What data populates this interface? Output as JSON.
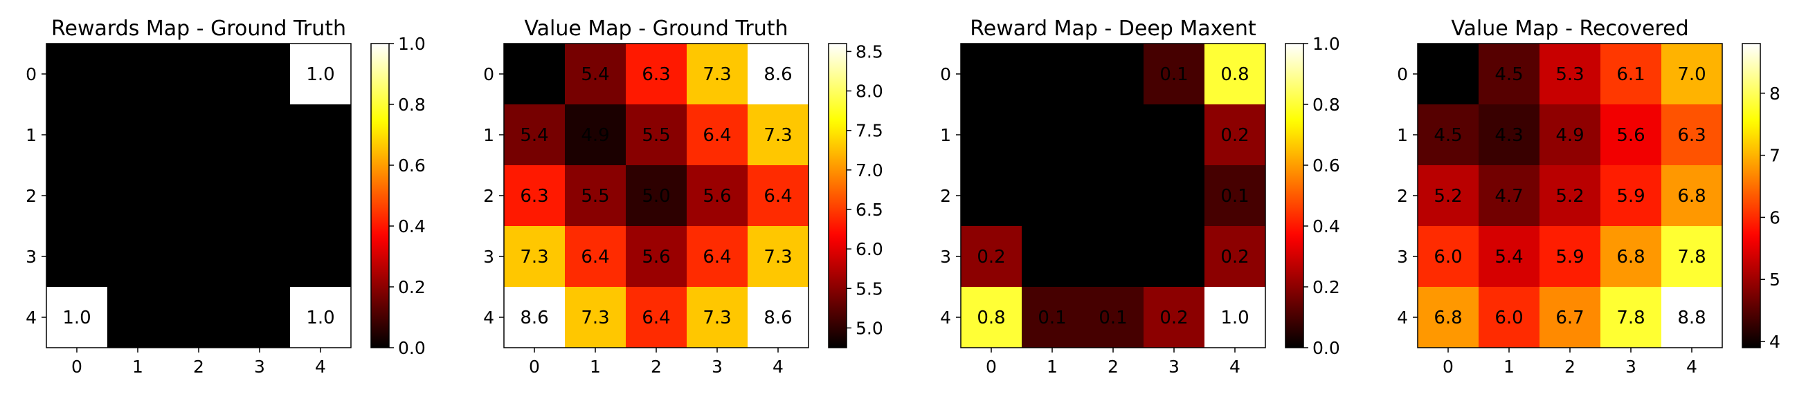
{
  "chart_data": [
    {
      "type": "heatmap",
      "title": "Rewards Map - Ground Truth",
      "x_ticks": [
        "0",
        "1",
        "2",
        "3",
        "4"
      ],
      "y_ticks": [
        "0",
        "1",
        "2",
        "3",
        "4"
      ],
      "colormap": "hot",
      "vmin": 0.0,
      "vmax": 1.0,
      "colorbar_ticks": [
        0.0,
        0.2,
        0.4,
        0.6,
        0.8,
        1.0
      ],
      "colorbar_labels": [
        "0.0",
        "0.2",
        "0.4",
        "0.6",
        "0.8",
        "1.0"
      ],
      "values": [
        [
          0.0,
          0.0,
          0.0,
          0.0,
          1.0
        ],
        [
          0.0,
          0.0,
          0.0,
          0.0,
          0.0
        ],
        [
          0.0,
          0.0,
          0.0,
          0.0,
          0.0
        ],
        [
          0.0,
          0.0,
          0.0,
          0.0,
          0.0
        ],
        [
          1.0,
          0.0,
          0.0,
          0.0,
          1.0
        ]
      ]
    },
    {
      "type": "heatmap",
      "title": "Value Map - Ground Truth",
      "x_ticks": [
        "0",
        "1",
        "2",
        "3",
        "4"
      ],
      "y_ticks": [
        "0",
        "1",
        "2",
        "3",
        "4"
      ],
      "colormap": "hot",
      "vmin": 4.75,
      "vmax": 8.6,
      "colorbar_ticks": [
        5.0,
        5.5,
        6.0,
        6.5,
        7.0,
        7.5,
        8.0,
        8.5
      ],
      "colorbar_labels": [
        "5.0",
        "5.5",
        "6.0",
        "6.5",
        "7.0",
        "7.5",
        "8.0",
        "8.5"
      ],
      "values": [
        [
          4.4,
          5.4,
          6.3,
          7.3,
          8.6
        ],
        [
          5.4,
          4.9,
          5.5,
          6.4,
          7.3
        ],
        [
          6.3,
          5.5,
          5.0,
          5.6,
          6.4
        ],
        [
          7.3,
          6.4,
          5.6,
          6.4,
          7.3
        ],
        [
          8.6,
          7.3,
          6.4,
          7.3,
          8.6
        ]
      ]
    },
    {
      "type": "heatmap",
      "title": "Reward Map - Deep Maxent",
      "x_ticks": [
        "0",
        "1",
        "2",
        "3",
        "4"
      ],
      "y_ticks": [
        "0",
        "1",
        "2",
        "3",
        "4"
      ],
      "colormap": "hot",
      "vmin": 0.0,
      "vmax": 1.0,
      "colorbar_ticks": [
        0.0,
        0.2,
        0.4,
        0.6,
        0.8,
        1.0
      ],
      "colorbar_labels": [
        "0.0",
        "0.2",
        "0.4",
        "0.6",
        "0.8",
        "1.0"
      ],
      "values": [
        [
          0.0,
          0.0,
          0.0,
          0.1,
          0.8
        ],
        [
          0.0,
          0.0,
          0.0,
          0.0,
          0.2
        ],
        [
          0.0,
          0.0,
          0.0,
          0.0,
          0.1
        ],
        [
          0.2,
          0.0,
          0.0,
          0.0,
          0.2
        ],
        [
          0.8,
          0.1,
          0.1,
          0.2,
          1.0
        ]
      ]
    },
    {
      "type": "heatmap",
      "title": "Value Map - Recovered",
      "x_ticks": [
        "0",
        "1",
        "2",
        "3",
        "4"
      ],
      "y_ticks": [
        "0",
        "1",
        "2",
        "3",
        "4"
      ],
      "colormap": "hot",
      "vmin": 3.9,
      "vmax": 8.8,
      "colorbar_ticks": [
        4,
        5,
        6,
        7,
        8
      ],
      "colorbar_labels": [
        "4",
        "5",
        "6",
        "7",
        "8"
      ],
      "values": [
        [
          3.9,
          4.5,
          5.3,
          6.1,
          7.0
        ],
        [
          4.5,
          4.3,
          4.9,
          5.6,
          6.3
        ],
        [
          5.2,
          4.7,
          5.2,
          5.9,
          6.8
        ],
        [
          6.0,
          5.4,
          5.9,
          6.8,
          7.8
        ],
        [
          6.8,
          6.0,
          6.7,
          7.8,
          8.8
        ]
      ]
    }
  ]
}
